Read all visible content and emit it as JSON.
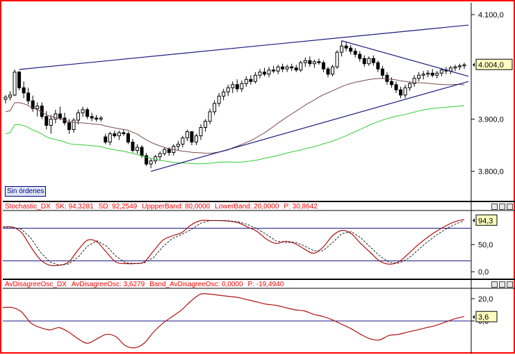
{
  "chart_data": [
    {
      "type": "candlestick",
      "title": "",
      "y_ticks": [
        "4.100,0",
        "3.900,0",
        "3.800,0"
      ],
      "y_tick_values": [
        4100,
        3900,
        3800
      ],
      "ylim": [
        3745,
        4120
      ],
      "last_value_label": "4.004,0",
      "last_value": 4004,
      "badge": "Sin órdenes",
      "candles_approx": [
        [
          3938,
          3946,
          3930,
          3942
        ],
        [
          3942,
          3953,
          3936,
          3946
        ],
        [
          3946,
          3995,
          3944,
          3990
        ],
        [
          3990,
          3992,
          3955,
          3960
        ],
        [
          3960,
          3972,
          3940,
          3950
        ],
        [
          3950,
          3960,
          3928,
          3935
        ],
        [
          3935,
          3945,
          3914,
          3920
        ],
        [
          3920,
          3932,
          3905,
          3925
        ],
        [
          3925,
          3932,
          3900,
          3905
        ],
        [
          3905,
          3915,
          3880,
          3888
        ],
        [
          3888,
          3908,
          3872,
          3900
        ],
        [
          3900,
          3918,
          3892,
          3910
        ],
        [
          3910,
          3924,
          3898,
          3902
        ],
        [
          3902,
          3912,
          3888,
          3893
        ],
        [
          3893,
          3900,
          3872,
          3880
        ],
        [
          3880,
          3902,
          3874,
          3898
        ],
        [
          3898,
          3918,
          3890,
          3912
        ],
        [
          3912,
          3924,
          3904,
          3918
        ],
        [
          3918,
          3922,
          3900,
          3905
        ],
        [
          3905,
          3912,
          3896,
          3902
        ],
        [
          3902,
          3908,
          3895,
          3900
        ],
        [
          3900,
          3906,
          3895,
          3902
        ],
        [
          3866,
          3872,
          3852,
          3856
        ],
        [
          3856,
          3876,
          3850,
          3872
        ],
        [
          3872,
          3878,
          3864,
          3868
        ],
        [
          3868,
          3878,
          3860,
          3874
        ],
        [
          3874,
          3880,
          3868,
          3872
        ],
        [
          3872,
          3876,
          3852,
          3856
        ],
        [
          3856,
          3862,
          3836,
          3840
        ],
        [
          3840,
          3852,
          3834,
          3846
        ],
        [
          3846,
          3850,
          3826,
          3830
        ],
        [
          3830,
          3835,
          3810,
          3814
        ],
        [
          3814,
          3824,
          3806,
          3820
        ],
        [
          3820,
          3832,
          3814,
          3828
        ],
        [
          3828,
          3838,
          3820,
          3834
        ],
        [
          3834,
          3846,
          3830,
          3842
        ],
        [
          3842,
          3846,
          3830,
          3836
        ],
        [
          3836,
          3852,
          3830,
          3848
        ],
        [
          3848,
          3858,
          3840,
          3852
        ],
        [
          3852,
          3868,
          3846,
          3864
        ],
        [
          3864,
          3880,
          3858,
          3876
        ],
        [
          3876,
          3870,
          3850,
          3856
        ],
        [
          3856,
          3872,
          3850,
          3868
        ],
        [
          3868,
          3890,
          3860,
          3884
        ],
        [
          3884,
          3900,
          3876,
          3896
        ],
        [
          3896,
          3920,
          3890,
          3914
        ],
        [
          3914,
          3936,
          3908,
          3930
        ],
        [
          3930,
          3950,
          3924,
          3944
        ],
        [
          3944,
          3958,
          3936,
          3952
        ],
        [
          3952,
          3966,
          3944,
          3960
        ],
        [
          3960,
          3972,
          3950,
          3966
        ],
        [
          3966,
          3976,
          3952,
          3958
        ],
        [
          3958,
          3974,
          3952,
          3968
        ],
        [
          3968,
          3982,
          3962,
          3976
        ],
        [
          3976,
          3984,
          3966,
          3972
        ],
        [
          3972,
          3990,
          3968,
          3984
        ],
        [
          3984,
          3996,
          3978,
          3990
        ],
        [
          3990,
          3998,
          3982,
          3986
        ],
        [
          3986,
          4000,
          3980,
          3994
        ],
        [
          3994,
          4002,
          3988,
          3992
        ],
        [
          3992,
          4004,
          3986,
          4000
        ],
        [
          4000,
          4006,
          3990,
          3996
        ],
        [
          3996,
          4004,
          3990,
          4000
        ],
        [
          4000,
          4006,
          3992,
          3998
        ],
        [
          3998,
          4004,
          3990,
          3994
        ],
        [
          3994,
          4012,
          3990,
          4008
        ],
        [
          4008,
          4018,
          4000,
          4012
        ],
        [
          4012,
          4020,
          4000,
          4006
        ],
        [
          4006,
          4014,
          3998,
          4010
        ],
        [
          4010,
          4016,
          4004,
          4008
        ],
        [
          4008,
          4012,
          3990,
          3996
        ],
        [
          3996,
          4000,
          3980,
          3986
        ],
        [
          3986,
          4004,
          3982,
          4000
        ],
        [
          4000,
          4032,
          3996,
          4028
        ],
        [
          4028,
          4050,
          4020,
          4040
        ],
        [
          4040,
          4048,
          4030,
          4036
        ],
        [
          4036,
          4042,
          4024,
          4030
        ],
        [
          4030,
          4036,
          4018,
          4024
        ],
        [
          4024,
          4030,
          4010,
          4016
        ],
        [
          4016,
          4022,
          4000,
          4006
        ],
        [
          4006,
          4020,
          4002,
          4016
        ],
        [
          4016,
          4022,
          4002,
          4008
        ],
        [
          4008,
          4012,
          3990,
          3996
        ],
        [
          3996,
          4002,
          3978,
          3984
        ],
        [
          3984,
          3990,
          3966,
          3972
        ],
        [
          3972,
          3980,
          3960,
          3966
        ],
        [
          3966,
          3972,
          3950,
          3956
        ],
        [
          3956,
          3962,
          3940,
          3946
        ],
        [
          3946,
          3966,
          3940,
          3960
        ],
        [
          3960,
          3972,
          3954,
          3968
        ],
        [
          3968,
          3984,
          3962,
          3978
        ],
        [
          3978,
          3990,
          3972,
          3984
        ],
        [
          3984,
          3992,
          3976,
          3986
        ],
        [
          3986,
          3994,
          3980,
          3988
        ],
        [
          3988,
          3996,
          3980,
          3984
        ],
        [
          3984,
          3992,
          3978,
          3988
        ],
        [
          3988,
          3998,
          3982,
          3994
        ],
        [
          3994,
          4000,
          3986,
          3992
        ],
        [
          3992,
          4002,
          3986,
          3998
        ],
        [
          3998,
          4004,
          3992,
          4000
        ],
        [
          4000,
          4006,
          3994,
          4002
        ],
        [
          4002,
          4008,
          3996,
          4004
        ]
      ]
    },
    {
      "type": "line",
      "header": [
        "Stochastic_DX",
        "SK: 94,3281",
        "SD: 92,2549",
        "UppperBand: 80,0000",
        "LowerBand: 20,0000",
        "P: 30,8642"
      ],
      "y_ticks": [
        "50,0",
        "0,0"
      ],
      "y_tick_values": [
        50,
        0
      ],
      "ylim": [
        -10,
        110
      ],
      "upper_band": 80,
      "lower_band": 20,
      "last_value_label": "94,3",
      "last_value": 94.3,
      "series_approx": [
        [
          0,
          82
        ],
        [
          8,
          82
        ],
        [
          16,
          72
        ],
        [
          24,
          45
        ],
        [
          32,
          22
        ],
        [
          40,
          12
        ],
        [
          48,
          12
        ],
        [
          56,
          18
        ],
        [
          64,
          40
        ],
        [
          72,
          58
        ],
        [
          80,
          55
        ],
        [
          88,
          36
        ],
        [
          96,
          18
        ],
        [
          104,
          15
        ],
        [
          112,
          15
        ],
        [
          120,
          18
        ],
        [
          128,
          38
        ],
        [
          136,
          58
        ],
        [
          144,
          66
        ],
        [
          152,
          72
        ],
        [
          160,
          86
        ],
        [
          168,
          94
        ],
        [
          176,
          94
        ],
        [
          184,
          94
        ],
        [
          192,
          93
        ],
        [
          200,
          90
        ],
        [
          208,
          82
        ],
        [
          216,
          74
        ],
        [
          224,
          60
        ],
        [
          232,
          52
        ],
        [
          240,
          56
        ],
        [
          248,
          52
        ],
        [
          256,
          42
        ],
        [
          264,
          34
        ],
        [
          272,
          45
        ],
        [
          280,
          66
        ],
        [
          288,
          76
        ],
        [
          296,
          70
        ],
        [
          304,
          52
        ],
        [
          312,
          36
        ],
        [
          320,
          20
        ],
        [
          328,
          14
        ],
        [
          336,
          18
        ],
        [
          344,
          32
        ],
        [
          352,
          48
        ],
        [
          360,
          62
        ],
        [
          368,
          74
        ],
        [
          376,
          84
        ],
        [
          384,
          92
        ],
        [
          392,
          96
        ]
      ]
    },
    {
      "type": "line",
      "header": [
        "AvDisagreeOsc_DX",
        "AvDisagreeOsc: 3,6279",
        "Band_AvDisagreeOsc: 0,0000",
        "P: -19,4940"
      ],
      "y_ticks": [
        "20,0",
        "0,0"
      ],
      "y_tick_values": [
        20,
        0
      ],
      "ylim": [
        -28,
        28
      ],
      "band": 0,
      "last_value_label": "3,6",
      "last_value": 3.6,
      "series_approx": [
        [
          0,
          12
        ],
        [
          8,
          12
        ],
        [
          16,
          8
        ],
        [
          24,
          -2
        ],
        [
          32,
          -6
        ],
        [
          40,
          -8
        ],
        [
          48,
          -6
        ],
        [
          56,
          -10
        ],
        [
          64,
          -16
        ],
        [
          72,
          -20
        ],
        [
          80,
          -16
        ],
        [
          88,
          -12
        ],
        [
          96,
          -14
        ],
        [
          104,
          -22
        ],
        [
          112,
          -24
        ],
        [
          120,
          -20
        ],
        [
          128,
          -10
        ],
        [
          136,
          -2
        ],
        [
          144,
          4
        ],
        [
          152,
          10
        ],
        [
          160,
          18
        ],
        [
          168,
          24
        ],
        [
          176,
          24
        ],
        [
          184,
          23
        ],
        [
          192,
          22
        ],
        [
          200,
          21
        ],
        [
          208,
          19
        ],
        [
          216,
          17
        ],
        [
          224,
          15
        ],
        [
          232,
          14
        ],
        [
          240,
          12
        ],
        [
          248,
          10
        ],
        [
          256,
          9
        ],
        [
          264,
          6
        ],
        [
          272,
          4
        ],
        [
          280,
          1
        ],
        [
          288,
          -3
        ],
        [
          296,
          -7
        ],
        [
          304,
          -12
        ],
        [
          312,
          -16
        ],
        [
          320,
          -17
        ],
        [
          328,
          -13
        ],
        [
          336,
          -12
        ],
        [
          344,
          -10
        ],
        [
          352,
          -8
        ],
        [
          360,
          -6
        ],
        [
          368,
          -4
        ],
        [
          376,
          -1
        ],
        [
          384,
          2
        ],
        [
          392,
          4
        ]
      ]
    }
  ]
}
